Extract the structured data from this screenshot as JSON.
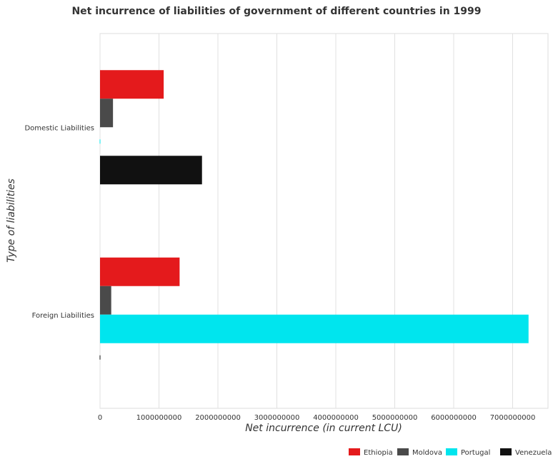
{
  "chart_data": {
    "type": "bar",
    "orientation": "horizontal",
    "title": "Net incurrence of liabilities of government of different countries in 1999",
    "xlabel": "Net incurrence (in current LCU)",
    "ylabel": "Type of liabilities",
    "categories": [
      "Domestic Liabilities",
      "Foreign Liabilities"
    ],
    "xlim": [
      0,
      7600000000
    ],
    "xticks": [
      0,
      1000000000,
      2000000000,
      3000000000,
      4000000000,
      5000000000,
      6000000000,
      7000000000
    ],
    "xtick_labels": [
      "0",
      "1000000000",
      "2000000000",
      "3000000000",
      "4000000000",
      "5000000000",
      "6000000000",
      "7000000000"
    ],
    "grid": true,
    "legend_position": "bottom-right",
    "series": [
      {
        "name": "Ethiopia",
        "color": "#e41a1c",
        "values": [
          1080000000,
          1350000000
        ]
      },
      {
        "name": "Moldova",
        "color": "#4a4a4a",
        "values": [
          220000000,
          190000000
        ]
      },
      {
        "name": "Portugal",
        "color": "#00e5ee",
        "values": [
          0,
          7270000000
        ]
      },
      {
        "name": "Venezuela",
        "color": "#111111",
        "values": [
          1730000000,
          0
        ]
      }
    ]
  }
}
